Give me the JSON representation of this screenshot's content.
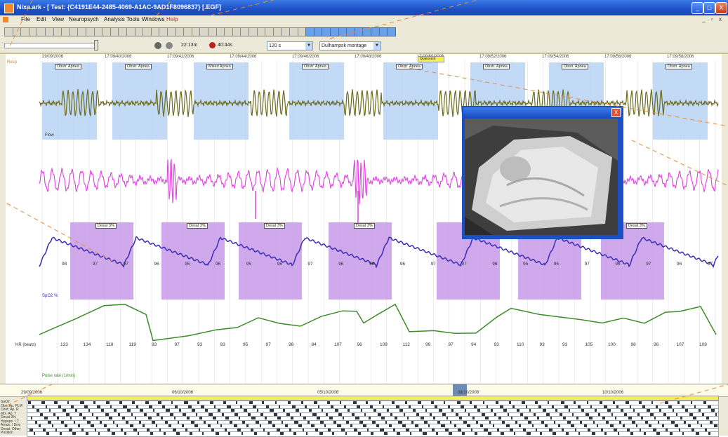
{
  "window": {
    "title": "Nixa.ark - [ Test: {C4191E44-2485-4069-A1AC-9AD1F8096837} [.EGF]",
    "buttons": {
      "minimize": "_",
      "maximize": "□",
      "close": "X"
    }
  },
  "menu": {
    "items": [
      "File",
      "Edit",
      "View",
      "Neuropsych",
      "Analysis",
      "Tools",
      "Windows",
      "Help"
    ],
    "mdi_controls": "_ ▫ x"
  },
  "toolbar2": {
    "time_a": "22:13m",
    "time_b": "40:44s",
    "duration_select": "120 s",
    "montage_select": "Dulhampsk montage"
  },
  "timeline": {
    "labels": [
      "29/09/2006",
      "17:09/40/2006",
      "17:09/42/2006",
      "17:09/44/2006",
      "17:09/46/2006",
      "17:09/48/2006",
      "17:09/50/2006",
      "17:09/52/2006",
      "17:09/54/2006",
      "17:09/56/2006",
      "17:09/58/2006"
    ],
    "highlight": "Quiescent"
  },
  "channels": {
    "resp_label": "Resp",
    "flow_label": "Flow",
    "spo2_label": "SpO2 %",
    "hr_label": "HR (beats)",
    "hr_unit": "Pulse rate (1/min)",
    "spo2_values": [
      "98",
      "97",
      "97",
      "96",
      "95",
      "96",
      "95",
      "96",
      "97",
      "96",
      "98",
      "96",
      "97",
      "97",
      "96",
      "95",
      "96",
      "97",
      "96",
      "97",
      "96",
      "97"
    ],
    "hr_values": [
      "133",
      "134",
      "118",
      "119",
      "93",
      "97",
      "93",
      "93",
      "95",
      "97",
      "98",
      "84",
      "107",
      "96",
      "109",
      "112",
      "99",
      "97",
      "94",
      "93",
      "110",
      "93",
      "93",
      "105",
      "100",
      "98",
      "98",
      "107",
      "109"
    ]
  },
  "events": {
    "resp_events": [
      "Obstr. Apnea",
      "Obstr. Apnea",
      "Mixed Apnea",
      "Obstr. Apnea",
      "Obstr. Apnea",
      "Obstr. Apnea",
      "Obstr. Apnea",
      "Obstr. Apnea"
    ],
    "desat_events": [
      "Desat 3%",
      "Desat 3%",
      "Desat 3%",
      "Desat 3%",
      "Desat 3%",
      "Desat 3%",
      "Desat 3%"
    ]
  },
  "video": {
    "title": "",
    "close": "X"
  },
  "overview": {
    "times": [
      "29/09/2006",
      "06/10/2006",
      "05/10/2006",
      "08/10/2006",
      "10/10/2006"
    ],
    "row_labels": [
      "SaO2",
      "Obs. Ap. PLM",
      "Cent. Ap. R",
      "Mix. Ap. ?",
      "Desat 3%",
      "Hypopn. / ?",
      "Arous. / Drw.",
      "Desat. Other",
      "Position"
    ]
  },
  "colors": {
    "resp_wave": "#6b6b1f",
    "flow_wave": "#e040e0",
    "spo2_wave": "#3a2bb8",
    "hr_wave": "#3f8a2a",
    "apnea_box": "#b9d4f5",
    "desat_box": "#c79ae8",
    "annotation_dash": "#e88a3c"
  }
}
